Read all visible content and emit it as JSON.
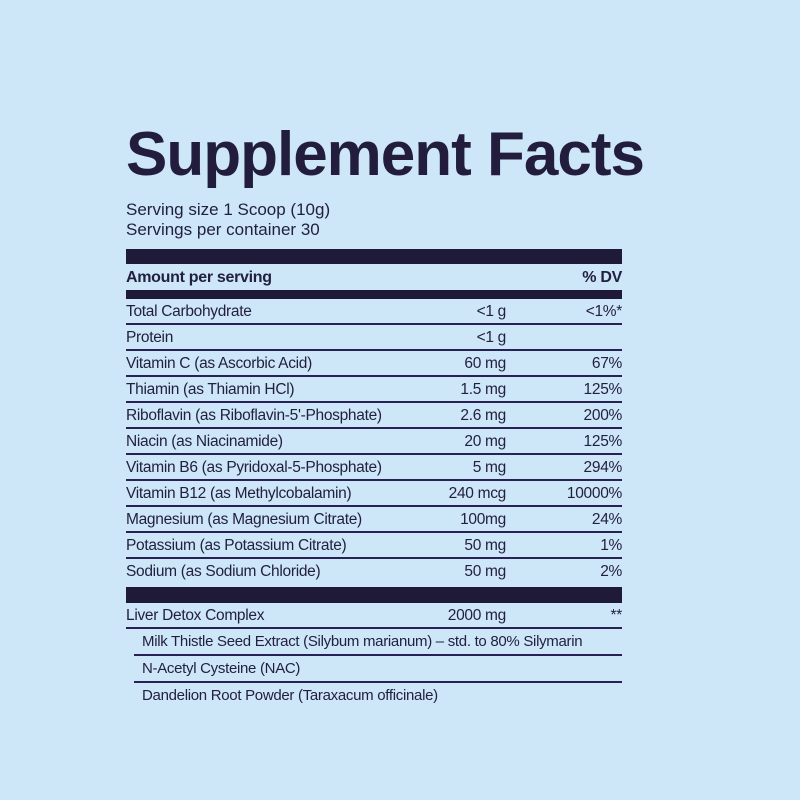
{
  "title": "Supplement Facts",
  "serving": {
    "size": "Serving size 1 Scoop (10g)",
    "per_container": "Servings per container 30"
  },
  "header": {
    "amount": "Amount per serving",
    "dv": "% DV"
  },
  "rows": [
    {
      "name": "Total Carbohydrate",
      "amount": "<1 g",
      "dv": "<1%*"
    },
    {
      "name": "Protein",
      "amount": "<1 g",
      "dv": ""
    },
    {
      "name": "Vitamin C (as Ascorbic Acid)",
      "amount": "60 mg",
      "dv": "67%"
    },
    {
      "name": "Thiamin (as Thiamin HCl)",
      "amount": "1.5 mg",
      "dv": "125%"
    },
    {
      "name": "Riboflavin (as Riboflavin-5'-Phosphate)",
      "amount": "2.6 mg",
      "dv": "200%"
    },
    {
      "name": "Niacin (as Niacinamide)",
      "amount": "20 mg",
      "dv": "125%"
    },
    {
      "name": "Vitamin B6 (as Pyridoxal-5-Phosphate)",
      "amount": "5 mg",
      "dv": "294%"
    },
    {
      "name": "Vitamin B12 (as Methylcobalamin)",
      "amount": "240 mcg",
      "dv": "10000%"
    },
    {
      "name": "Magnesium (as Magnesium Citrate)",
      "amount": "100mg",
      "dv": "24%"
    },
    {
      "name": "Potassium (as Potassium Citrate)",
      "amount": "50 mg",
      "dv": "1%"
    },
    {
      "name": "Sodium (as Sodium Chloride)",
      "amount": "50 mg",
      "dv": "2%"
    }
  ],
  "complex": {
    "name": "Liver Detox Complex",
    "amount": "2000 mg",
    "dv": "**"
  },
  "sub_ingredients": [
    "Milk Thistle Seed Extract (Silybum marianum) – std. to 80% Silymarin",
    "N-Acetyl Cysteine (NAC)",
    "Dandelion Root Powder (Taraxacum officinale)"
  ],
  "colors": {
    "background": "#cde6f8",
    "ink": "#23203f",
    "bar": "#1f1a38"
  }
}
